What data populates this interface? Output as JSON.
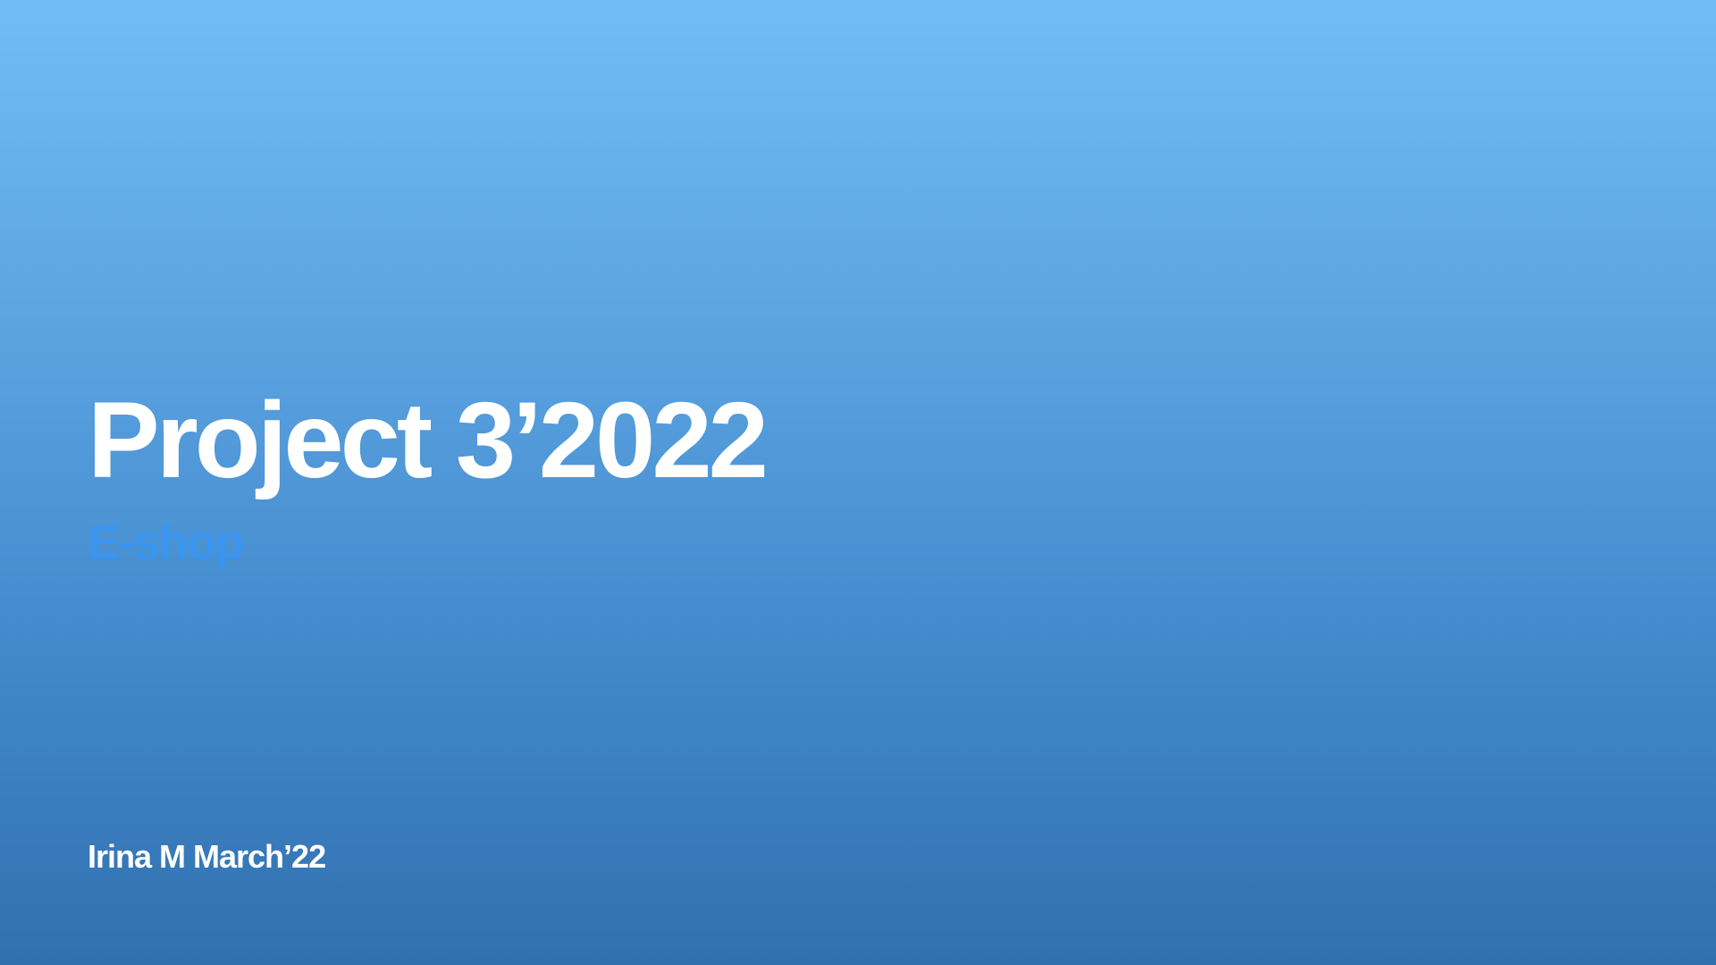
{
  "slide": {
    "title": "Project 3’2022",
    "subtitle": "E-shop",
    "author_line": "Irina M March’22"
  },
  "colors": {
    "background_top": "#71bcf8",
    "background_bottom": "#3170b0",
    "title": "#ffffff",
    "subtitle": "#3a95f0",
    "author": "#ffffff"
  }
}
